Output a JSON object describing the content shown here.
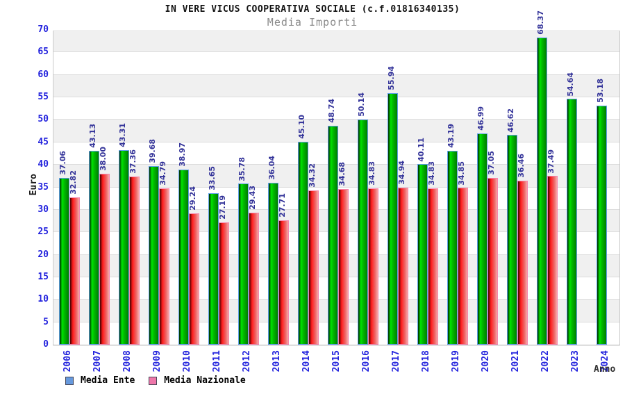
{
  "chart_data": {
    "type": "bar",
    "title": "IN VERE VICUS COOPERATIVA SOCIALE (c.f.01816340135)",
    "subtitle": "Media Importi",
    "xlabel": "Anno",
    "ylabel": "Euro",
    "ylim": [
      0,
      70
    ],
    "ytick_step": 5,
    "grid": true,
    "legend_position": "bottom-left",
    "categories": [
      "2006",
      "2007",
      "2008",
      "2009",
      "2010",
      "2011",
      "2012",
      "2013",
      "2014",
      "2015",
      "2016",
      "2017",
      "2018",
      "2019",
      "2020",
      "2021",
      "2022",
      "2023",
      "2024"
    ],
    "series": [
      {
        "name": "Media Ente",
        "bar_color": "#00cc00",
        "legend_color": "#6699dd",
        "values": [
          37.06,
          43.13,
          43.31,
          39.68,
          38.97,
          33.65,
          35.78,
          36.04,
          45.1,
          48.74,
          50.14,
          55.94,
          40.11,
          43.19,
          46.99,
          46.62,
          68.37,
          54.64,
          53.18
        ]
      },
      {
        "name": "Media Nazionale",
        "bar_color": "#ee3333",
        "legend_color": "#ee77aa",
        "values": [
          32.82,
          38.0,
          37.36,
          34.79,
          29.24,
          27.19,
          29.43,
          27.71,
          34.32,
          34.68,
          34.83,
          34.94,
          34.83,
          34.85,
          37.05,
          36.46,
          37.49,
          null,
          null
        ]
      }
    ],
    "axis_text_color": "#2222dd",
    "value_label_color": "#333399"
  }
}
